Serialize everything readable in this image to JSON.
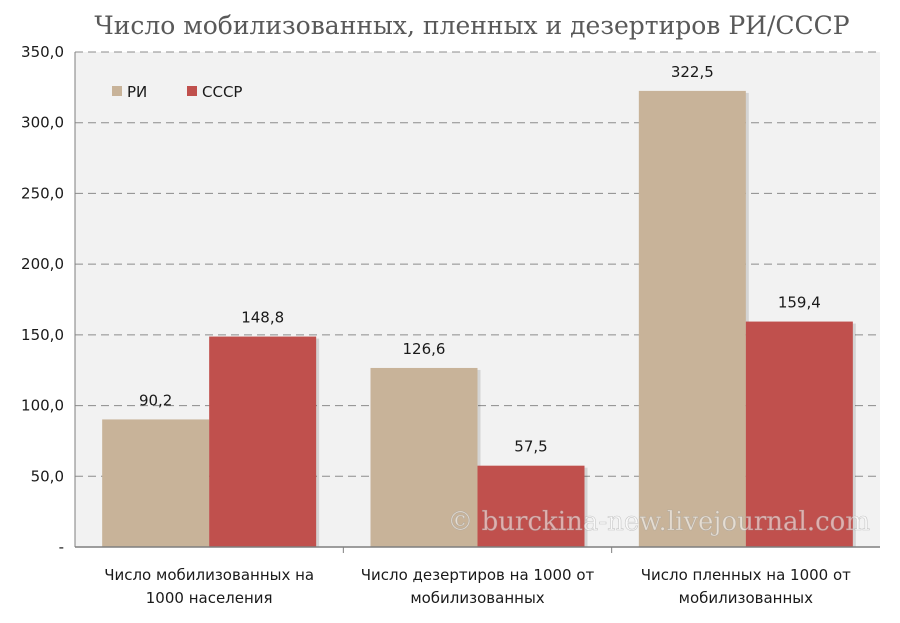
{
  "chart_data": {
    "type": "bar",
    "title": "Число мобилизованных, пленных и дезертиров РИ/СССР",
    "categories": [
      [
        "Число мобилизованных на",
        "1000 населения"
      ],
      [
        "Число дезертиров на 1000 от",
        "мобилизованных"
      ],
      [
        "Число пленных на 1000 от",
        "мобилизованных"
      ]
    ],
    "series": [
      {
        "name": "РИ",
        "color": "#c8b399",
        "values": [
          90.2,
          126.6,
          322.5
        ],
        "labels": [
          "90,2",
          "126,6",
          "322,5"
        ]
      },
      {
        "name": "СССР",
        "color": "#c0504d",
        "values": [
          148.8,
          57.5,
          159.4
        ],
        "labels": [
          "148,8",
          "57,5",
          "159,4"
        ]
      }
    ],
    "ylim": [
      0,
      350
    ],
    "yticks": [
      0,
      50,
      100,
      150,
      200,
      250,
      300,
      350
    ],
    "ytick_labels": [
      "-",
      "50,0",
      "100,0",
      "150,0",
      "200,0",
      "250,0",
      "300,0",
      "350,0"
    ],
    "grid": true,
    "legend_position": "top-left",
    "plot_background": "#f2f2f2"
  },
  "watermark": "© burckina-new.livejournal.com"
}
